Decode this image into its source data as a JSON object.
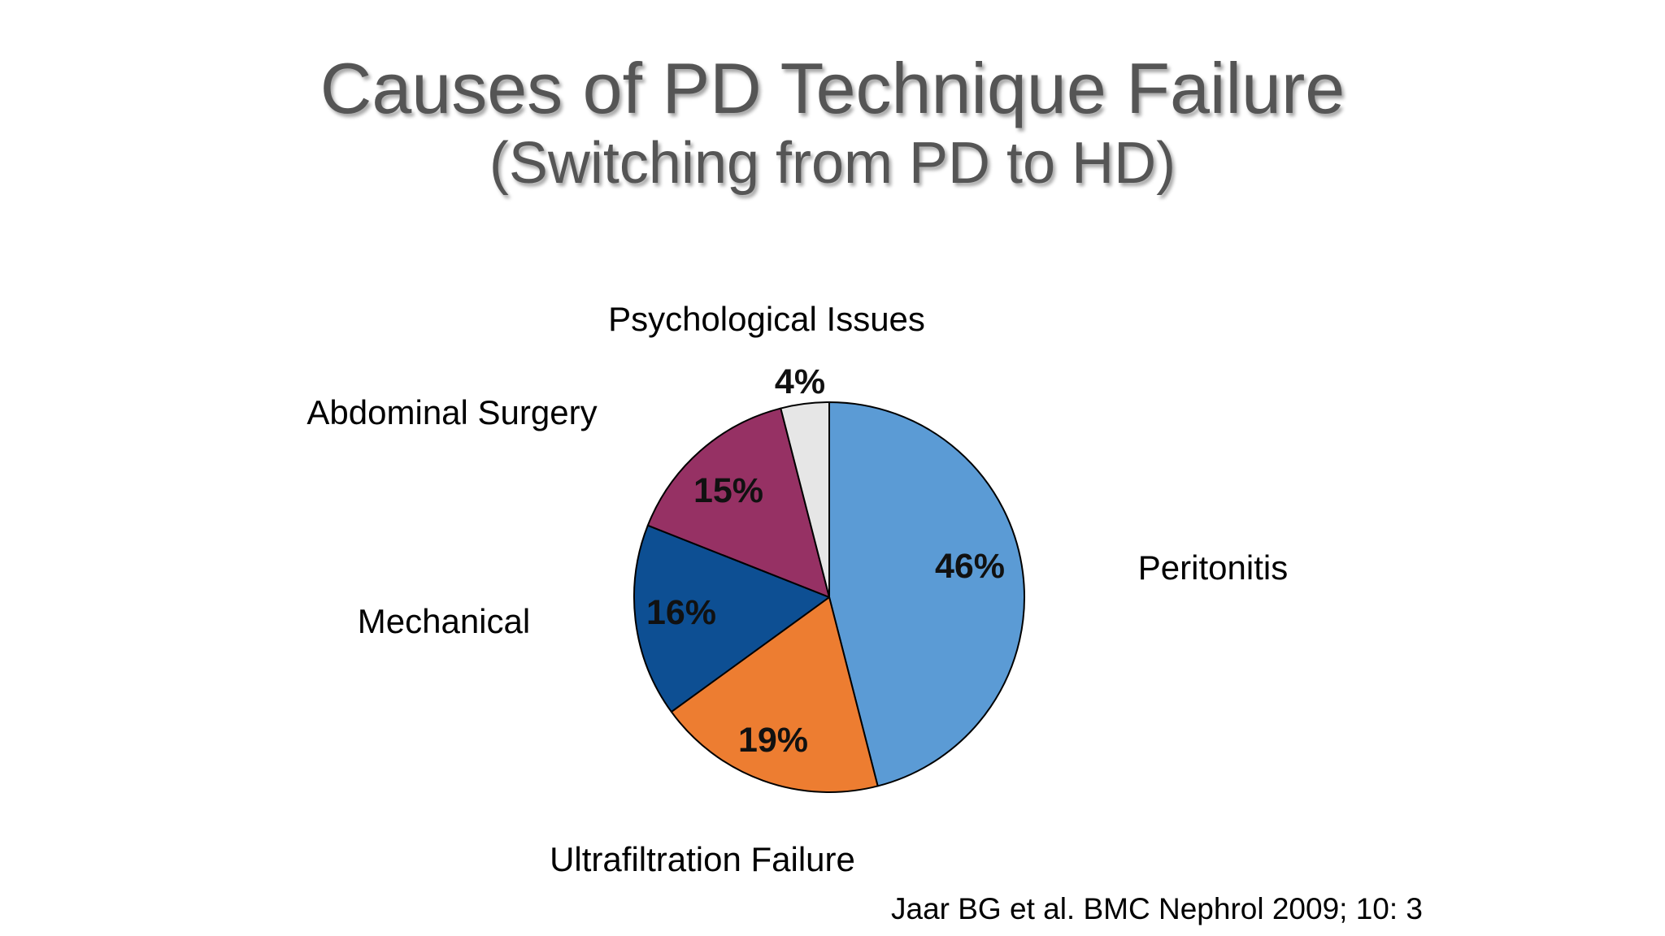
{
  "title": "Causes of PD Technique Failure",
  "subtitle": "(Switching from PD to HD)",
  "citation": "Jaar BG et al. BMC Nephrol 2009; 10: 3",
  "chart_data": {
    "type": "pie",
    "start_angle": "12 o'clock",
    "direction": "clockwise",
    "slices": [
      {
        "label": "Peritonitis",
        "value": 46,
        "value_label": "46%",
        "color": "#5b9bd5"
      },
      {
        "label": "Ultrafiltration Failure",
        "value": 19,
        "value_label": "19%",
        "color": "#ed7d31"
      },
      {
        "label": "Mechanical",
        "value": 16,
        "value_label": "16%",
        "color": "#0d4f93"
      },
      {
        "label": "Abdominal Surgery",
        "value": 15,
        "value_label": "15%",
        "color": "#963164"
      },
      {
        "label": "Psychological Issues",
        "value": 4,
        "value_label": "4%",
        "color": "#e6e6e6"
      }
    ]
  }
}
